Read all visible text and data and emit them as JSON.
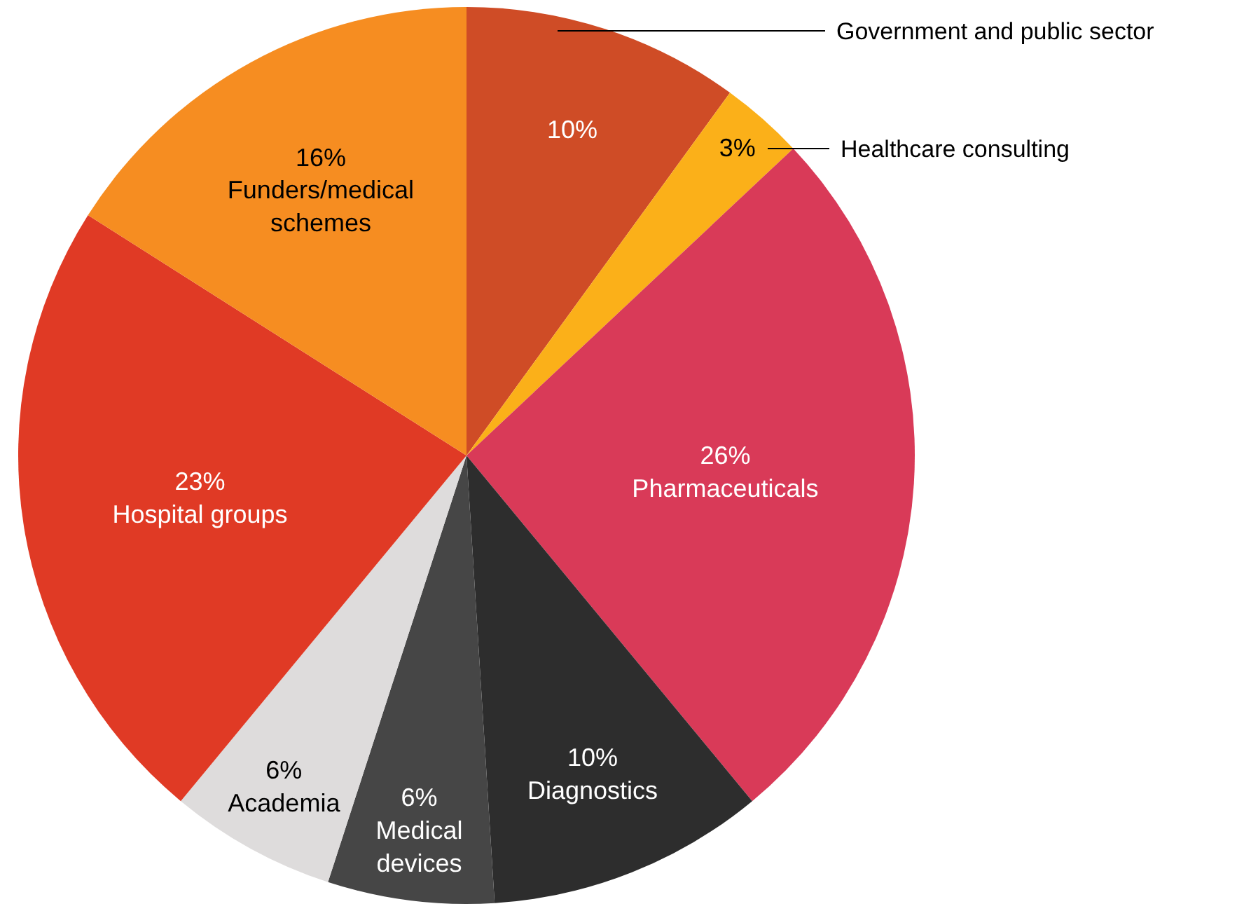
{
  "chart_data": {
    "type": "pie",
    "categories": [
      "Government and public sector",
      "Healthcare consulting",
      "Pharmaceuticals",
      "Diagnostics",
      "Medical devices",
      "Academia",
      "Hospital groups",
      "Funders/medical schemes"
    ],
    "values": [
      10,
      3,
      26,
      10,
      6,
      6,
      23,
      16
    ],
    "value_labels": [
      "10%",
      "3%",
      "26%",
      "10%",
      "6%",
      "6%",
      "23%",
      "16%"
    ],
    "colors": [
      "#cf4c26",
      "#fbb019",
      "#d93a58",
      "#2d2d2d",
      "#464646",
      "#dedcdc",
      "#e03a25",
      "#f68d21"
    ],
    "legend": false
  }
}
